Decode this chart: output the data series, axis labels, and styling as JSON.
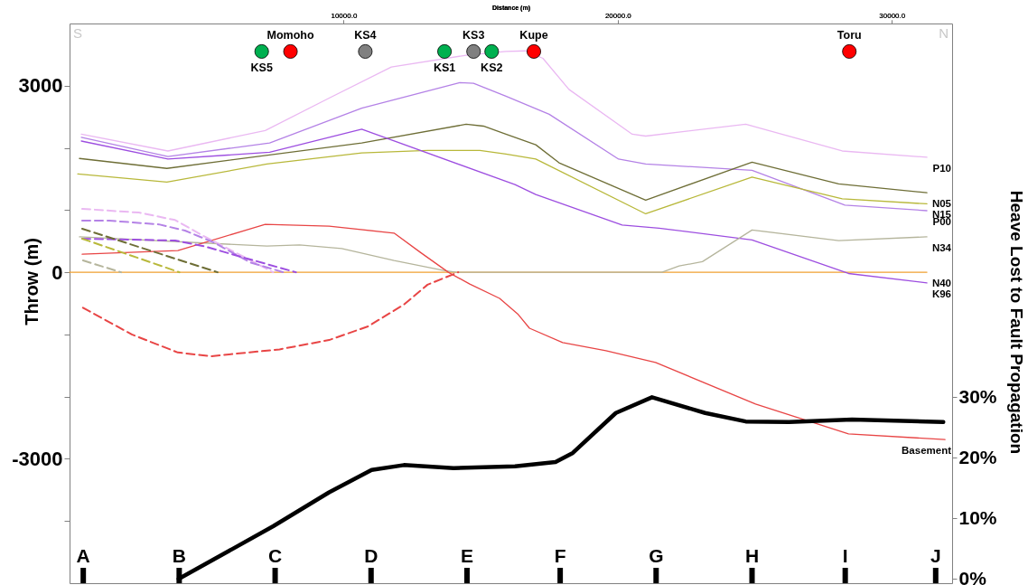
{
  "chart_data": {
    "type": "line",
    "xlabel": "Distance (m)",
    "ylabel": "Throw (m)",
    "y2label": "Heave Lost to Fault Propagation",
    "xlim": [
      0,
      32200
    ],
    "xticks": [
      {
        "value": 10000,
        "label": "10000.0"
      },
      {
        "value": 20000,
        "label": "20000.0"
      },
      {
        "value": 30000,
        "label": "30000.0"
      }
    ],
    "ref_lines": [
      {
        "axis": "x",
        "value": 500,
        "label": "A"
      },
      {
        "axis": "x",
        "value": 4000,
        "label": "B"
      },
      {
        "axis": "x",
        "value": 7500,
        "label": "C"
      },
      {
        "axis": "x",
        "value": 11000,
        "label": "D"
      },
      {
        "axis": "x",
        "value": 14500,
        "label": "E"
      },
      {
        "axis": "x",
        "value": 17900,
        "label": "F"
      },
      {
        "axis": "x",
        "value": 21400,
        "label": "G"
      },
      {
        "axis": "x",
        "value": 24900,
        "label": "H"
      },
      {
        "axis": "x",
        "value": 28300,
        "label": "I"
      },
      {
        "axis": "x",
        "value": 31600,
        "label": "J"
      }
    ],
    "ylim": [
      -5000,
      4000
    ],
    "yticks": [
      {
        "value": -4000,
        "label": null
      },
      -3000,
      {
        "value": -2000,
        "label": null
      },
      {
        "value": -1000,
        "label": null
      },
      0,
      {
        "value": 1000,
        "label": null
      },
      {
        "value": 2000,
        "label": null
      },
      3000
    ],
    "y2lim": [
      -0.7,
      91.7
    ],
    "y2ticks": [
      {
        "value": 0,
        "label": "0%"
      },
      {
        "value": 10,
        "label": "10%"
      },
      {
        "value": 20,
        "label": "20%"
      },
      {
        "value": 30,
        "label": "30%"
      }
    ],
    "grid": false,
    "series": [
      {
        "name": "N40",
        "color": "#f0a030",
        "x": [
          0,
          31280
        ],
        "values": [
          0,
          0
        ]
      },
      {
        "name": "P10",
        "color": "#eab8f2",
        "x": [
          430,
          3590,
          7140,
          9470,
          11740,
          14470,
          15920,
          16650,
          17270,
          18220,
          20530,
          21020,
          24670,
          28190,
          31280
        ],
        "values": [
          2220,
          1950,
          2280,
          2800,
          3300,
          3490,
          3550,
          3560,
          3440,
          2940,
          2220,
          2190,
          2380,
          1950,
          1850
        ]
      },
      {
        "name": "P00",
        "color": "#b482e6",
        "x": [
          430,
          3590,
          7300,
          10660,
          14240,
          14740,
          15920,
          17500,
          20030,
          21020,
          24900,
          28290,
          31280
        ],
        "values": [
          2170,
          1860,
          2080,
          2640,
          3050,
          3040,
          2830,
          2540,
          1820,
          1740,
          1640,
          1080,
          990
        ]
      },
      {
        "name": "N05",
        "color": "#6e6e36",
        "x": [
          360,
          3550,
          10660,
          14470,
          15100,
          15920,
          17010,
          17860,
          21020,
          24900,
          28060,
          31280
        ],
        "values": [
          1830,
          1670,
          2080,
          2380,
          2350,
          2220,
          2050,
          1760,
          1160,
          1770,
          1420,
          1280
        ]
      },
      {
        "name": "N15",
        "color": "#b8b83a",
        "x": [
          300,
          3550,
          7200,
          10660,
          13060,
          14970,
          15920,
          17010,
          21020,
          24900,
          28190,
          31280
        ],
        "values": [
          1580,
          1450,
          1740,
          1920,
          1960,
          1960,
          1900,
          1820,
          940,
          1530,
          1180,
          1100
        ]
      },
      {
        "name": "K96",
        "color": "#9d4ee0",
        "x": [
          430,
          3590,
          7300,
          10660,
          16250,
          17010,
          20160,
          21510,
          24900,
          28420,
          31280
        ],
        "values": [
          2110,
          1820,
          1930,
          2300,
          1410,
          1250,
          760,
          710,
          520,
          -20,
          -170
        ]
      },
      {
        "name": "N34",
        "color": "#b5b59c",
        "x": [
          360,
          7200,
          8390,
          9930,
          11840,
          13650,
          14110,
          21610,
          22240,
          23090,
          24900,
          28060,
          31280
        ],
        "values": [
          570,
          420,
          440,
          380,
          190,
          30,
          0,
          0,
          100,
          170,
          680,
          510,
          570
        ]
      },
      {
        "name": "Basement",
        "color": "#e84545",
        "x": [
          460,
          3950,
          7140,
          9470,
          11840,
          12800,
          13820,
          14600,
          15690,
          16350,
          16780,
          17990,
          19570,
          21380,
          25030,
          28420,
          31940
        ],
        "values": [
          290,
          350,
          770,
          740,
          630,
          320,
          0,
          -190,
          -420,
          -670,
          -900,
          -1130,
          -1260,
          -1450,
          -2120,
          -2600,
          -2690
        ]
      },
      {
        "color": "#e84545",
        "line_style": "dashed",
        "x": [
          490,
          2270,
          3950,
          5160,
          7660,
          9470,
          10890,
          12200,
          13060,
          14180
        ],
        "values": [
          -570,
          -1000,
          -1290,
          -1350,
          -1240,
          -1090,
          -870,
          -520,
          -200,
          0
        ]
      },
      {
        "color": "#eab8f2",
        "line_style": "dashed",
        "x": [
          460,
          2530,
          3850,
          4900,
          6350,
          7430
        ],
        "values": [
          1020,
          960,
          840,
          580,
          250,
          0
        ]
      },
      {
        "color": "#b482e6",
        "line_style": "dashed",
        "x": [
          460,
          1450,
          3260,
          4210,
          5260,
          6580,
          7800
        ],
        "values": [
          830,
          830,
          770,
          670,
          480,
          160,
          0
        ]
      },
      {
        "color": "#9d4ee0",
        "line_style": "dashed",
        "x": [
          460,
          3850,
          4900,
          6480,
          8260
        ],
        "values": [
          540,
          510,
          420,
          220,
          0
        ]
      },
      {
        "color": "#6e6e36",
        "line_style": "dashed",
        "x": [
          460,
          5400
        ],
        "values": [
          700,
          0
        ]
      },
      {
        "color": "#b8b83a",
        "line_style": "dashed",
        "x": [
          460,
          4010
        ],
        "values": [
          540,
          0
        ]
      },
      {
        "color": "#b5b59c",
        "line_style": "dashed",
        "x": [
          490,
          1880
        ],
        "values": [
          190,
          0
        ]
      },
      {
        "color": "#000000",
        "axis": "y2",
        "x": [
          3980,
          7430,
          9470,
          11020,
          12200,
          14010,
          16250,
          17730,
          18360,
          19930,
          21250,
          23190,
          24670,
          26250,
          28550,
          31880
        ],
        "values": [
          0,
          8.7,
          14.3,
          18.0,
          18.8,
          18.3,
          18.6,
          19.3,
          20.8,
          27.4,
          30.0,
          27.4,
          26.0,
          25.9,
          26.3,
          25.9
        ]
      },
      {
        "type": "scatter",
        "marker": "circle",
        "color": "#00b050",
        "x": [
          7010,
          13680,
          15400
        ],
        "values": [
          3550,
          3550,
          3550
        ],
        "value_labels": [
          "KS5",
          "KS1",
          "KS2"
        ]
      },
      {
        "type": "scatter",
        "marker": "circle",
        "color": "#ff0000",
        "x": [
          8060,
          16940,
          28450
        ],
        "values": [
          3550,
          3550,
          3550
        ],
        "value_labels": [
          "Momoho",
          "Kupe",
          "Toru"
        ]
      },
      {
        "type": "scatter",
        "marker": "circle",
        "color": "#808080",
        "x": [
          10790,
          14740
        ],
        "values": [
          3550,
          3550
        ],
        "value_labels": [
          "KS4",
          "KS3"
        ]
      }
    ],
    "annotations": [
      "S",
      "N"
    ]
  }
}
